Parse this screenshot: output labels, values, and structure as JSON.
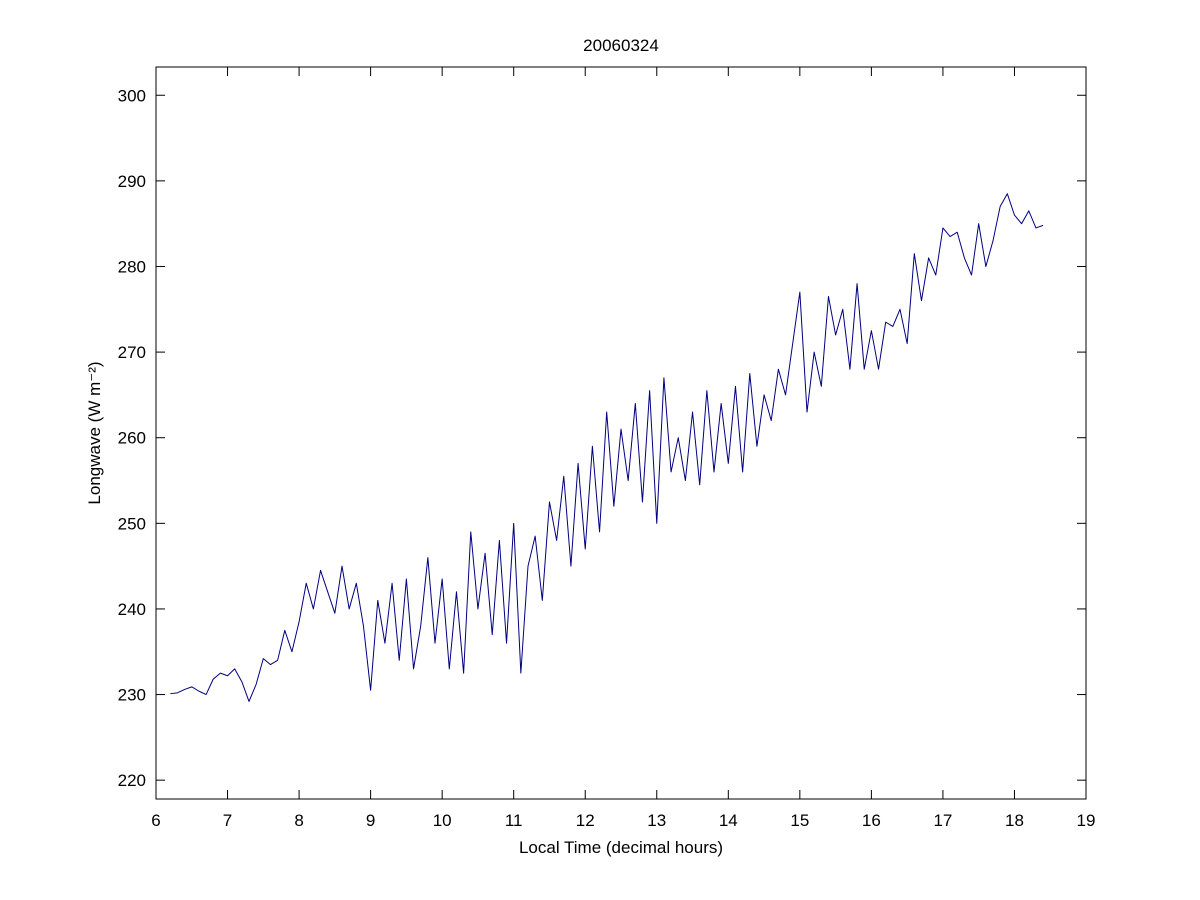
{
  "chart_data": {
    "type": "line",
    "title": "20060324",
    "xlabel": "Local Time (decimal hours)",
    "ylabel": "Longwave (W m⁻²)",
    "xlim": [
      6,
      19
    ],
    "ylim": [
      217.8,
      303.3
    ],
    "xticks": [
      6,
      7,
      8,
      9,
      10,
      11,
      12,
      13,
      14,
      15,
      16,
      17,
      18,
      19
    ],
    "yticks": [
      220,
      230,
      240,
      250,
      260,
      270,
      280,
      290,
      300
    ],
    "grid": false,
    "x": [
      6.2,
      6.3,
      6.4,
      6.5,
      6.6,
      6.7,
      6.8,
      6.9,
      7.0,
      7.1,
      7.2,
      7.3,
      7.4,
      7.5,
      7.6,
      7.7,
      7.8,
      7.9,
      8.0,
      8.1,
      8.2,
      8.3,
      8.4,
      8.5,
      8.6,
      8.7,
      8.8,
      8.9,
      9.0,
      9.1,
      9.2,
      9.3,
      9.4,
      9.5,
      9.6,
      9.7,
      9.8,
      9.9,
      10.0,
      10.1,
      10.2,
      10.3,
      10.4,
      10.5,
      10.6,
      10.7,
      10.8,
      10.9,
      11.0,
      11.1,
      11.2,
      11.3,
      11.4,
      11.5,
      11.6,
      11.7,
      11.8,
      11.9,
      12.0,
      12.1,
      12.2,
      12.3,
      12.4,
      12.5,
      12.6,
      12.7,
      12.8,
      12.9,
      13.0,
      13.1,
      13.2,
      13.3,
      13.4,
      13.5,
      13.6,
      13.7,
      13.8,
      13.9,
      14.0,
      14.1,
      14.2,
      14.3,
      14.4,
      14.5,
      14.6,
      14.7,
      14.8,
      14.9,
      15.0,
      15.1,
      15.2,
      15.3,
      15.4,
      15.5,
      15.6,
      15.7,
      15.8,
      15.9,
      16.0,
      16.1,
      16.2,
      16.3,
      16.4,
      16.5,
      16.6,
      16.7,
      16.8,
      16.9,
      17.0,
      17.1,
      17.2,
      17.3,
      17.4,
      17.5,
      17.6,
      17.7,
      17.8,
      17.9,
      18.0,
      18.1,
      18.2,
      18.3,
      18.4
    ],
    "series": [
      {
        "name": "Longwave",
        "color": "#000080",
        "values": [
          230.1,
          230.2,
          230.6,
          230.9,
          230.4,
          230.0,
          231.8,
          232.5,
          232.2,
          233.0,
          231.5,
          229.2,
          231.2,
          234.2,
          233.5,
          234.0,
          237.5,
          235.0,
          238.5,
          243.0,
          240.0,
          244.5,
          242.0,
          239.5,
          245.0,
          240.0,
          243.0,
          238.0,
          230.5,
          241.0,
          236.0,
          243.0,
          234.0,
          243.5,
          233.0,
          238.0,
          246.0,
          236.0,
          243.5,
          233.0,
          242.0,
          232.5,
          249.0,
          240.0,
          246.5,
          237.0,
          248.0,
          236.0,
          250.0,
          232.5,
          245.0,
          248.5,
          241.0,
          252.5,
          248.0,
          255.5,
          245.0,
          257.0,
          247.0,
          259.0,
          249.0,
          263.0,
          252.0,
          261.0,
          255.0,
          264.0,
          252.5,
          265.5,
          250.0,
          267.0,
          256.0,
          260.0,
          255.0,
          263.0,
          254.5,
          265.5,
          256.0,
          264.0,
          257.0,
          266.0,
          256.0,
          267.5,
          259.0,
          265.0,
          262.0,
          268.0,
          265.0,
          271.0,
          277.0,
          263.0,
          270.0,
          266.0,
          276.5,
          272.0,
          275.0,
          268.0,
          278.0,
          268.0,
          272.5,
          268.0,
          273.5,
          273.0,
          275.0,
          271.0,
          281.5,
          276.0,
          281.0,
          279.0,
          284.5,
          283.5,
          284.0,
          281.0,
          279.0,
          285.0,
          280.0,
          283.0,
          287.0,
          288.5,
          286.0,
          285.0,
          286.5,
          284.5,
          284.8
        ]
      }
    ]
  }
}
